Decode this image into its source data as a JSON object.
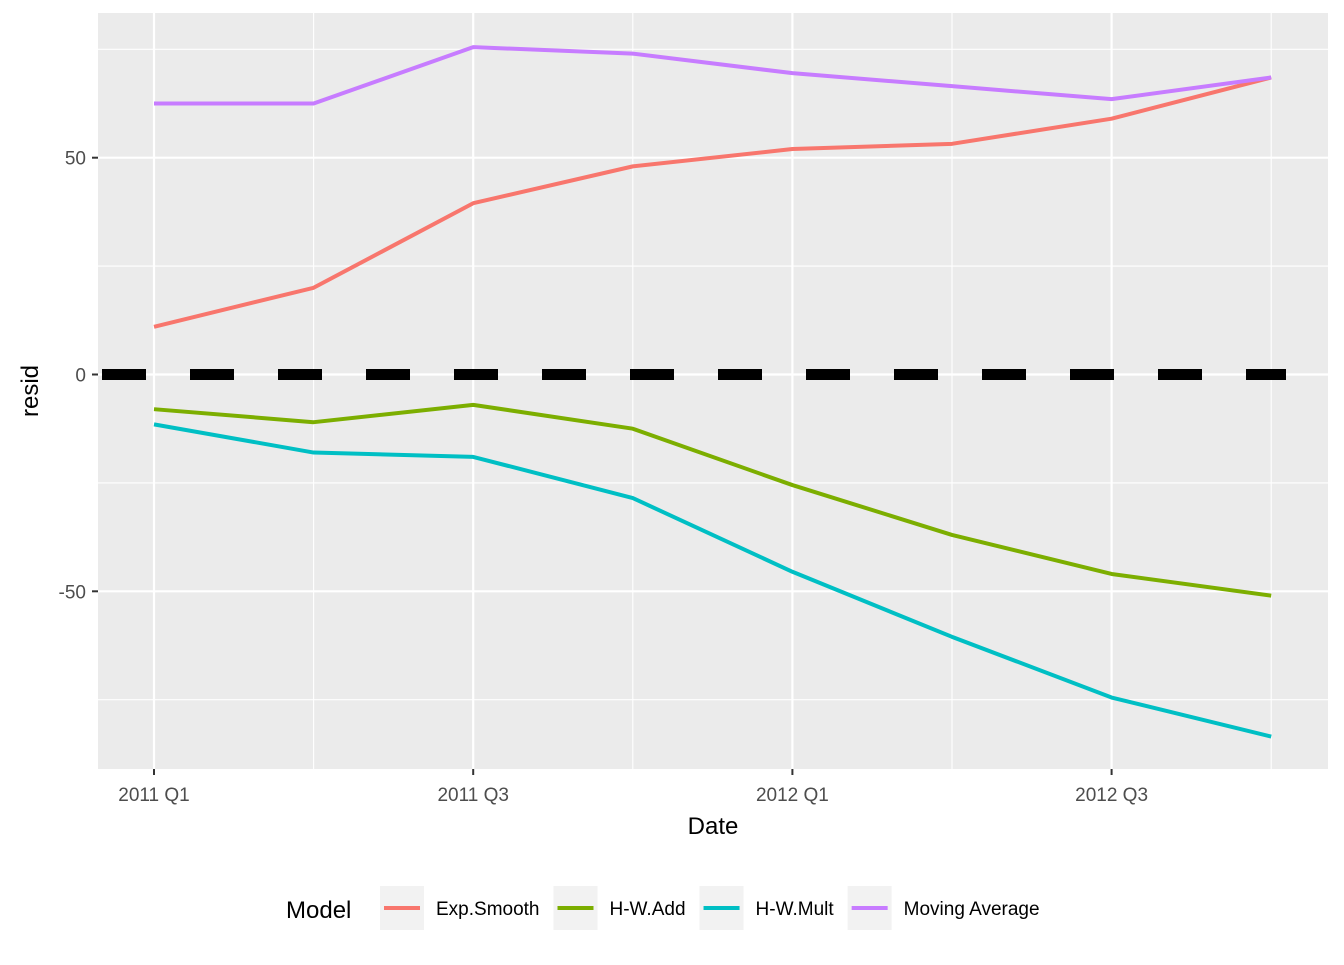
{
  "chart_data": {
    "type": "line",
    "xlabel": "Date",
    "ylabel": "resid",
    "x": [
      "2011 Q1",
      "2011 Q2",
      "2011 Q3",
      "2011 Q4",
      "2012 Q1",
      "2012 Q2",
      "2012 Q3",
      "2012 Q4"
    ],
    "x_tick_labels": [
      "2011 Q1",
      "2011 Q3",
      "2012 Q1",
      "2012 Q3"
    ],
    "y_ticks": [
      -50,
      0,
      50
    ],
    "ylim": [
      -86,
      84
    ],
    "grid": true,
    "legend": {
      "title": "Model",
      "position": "bottom"
    },
    "reference_line": {
      "y": 0,
      "style": "dashed",
      "color": "#000000"
    },
    "series": [
      {
        "name": "Exp.Smooth",
        "color": "#F8766D",
        "values": [
          11,
          20,
          39.5,
          48,
          52,
          53.2,
          59,
          68.5
        ]
      },
      {
        "name": "H-W.Add",
        "color": "#7CAE00",
        "values": [
          -8,
          -11,
          -7,
          -12.5,
          -25.5,
          -37,
          -46,
          -51
        ]
      },
      {
        "name": "H-W.Mult",
        "color": "#00BFC4",
        "values": [
          -11.5,
          -18,
          -19,
          -28.5,
          -45.5,
          -60.5,
          -74.5,
          -83.5
        ]
      },
      {
        "name": "Moving Average",
        "color": "#C77CFF",
        "values": [
          62.5,
          62.5,
          75.5,
          74,
          69.5,
          66.5,
          63.5,
          68.5
        ]
      }
    ]
  }
}
